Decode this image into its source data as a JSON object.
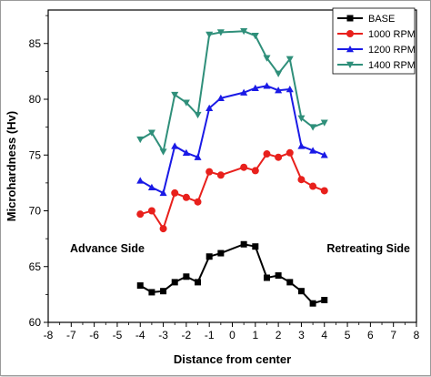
{
  "chart_data": {
    "type": "line",
    "xlabel": "Distance from center",
    "ylabel": "Microhardness (Hv)",
    "xlim": [
      -8,
      8
    ],
    "ylim": [
      60,
      88
    ],
    "x_ticks": [
      -8,
      -7,
      -6,
      -5,
      -4,
      -3,
      -2,
      -1,
      0,
      1,
      2,
      3,
      4,
      5,
      6,
      7,
      8
    ],
    "y_ticks": [
      60,
      65,
      70,
      75,
      80,
      85
    ],
    "grid": false,
    "legend_position": "top-right",
    "annotations": [
      "Advance Side",
      "Retreating Side"
    ],
    "x": [
      -4,
      -3.5,
      -3,
      -2.5,
      -2,
      -1.5,
      -1,
      -0.5,
      0.5,
      1,
      1.5,
      2,
      2.5,
      3,
      3.5,
      4
    ],
    "series": [
      {
        "name": "BASE",
        "color": "#000000",
        "marker": "square",
        "values": [
          63.3,
          62.7,
          62.8,
          63.6,
          64.1,
          63.6,
          65.9,
          66.2,
          67.0,
          66.8,
          64.0,
          64.2,
          63.6,
          62.8,
          61.7,
          62.0
        ]
      },
      {
        "name": "1000 RPM",
        "color": "#e8201c",
        "marker": "circle",
        "values": [
          69.7,
          70.0,
          68.4,
          71.6,
          71.2,
          70.8,
          73.5,
          73.2,
          73.9,
          73.6,
          75.1,
          74.8,
          75.2,
          72.8,
          72.2,
          71.8
        ]
      },
      {
        "name": "1200 RPM",
        "color": "#1a1ae6",
        "marker": "triangle-up",
        "values": [
          72.7,
          72.1,
          71.6,
          75.8,
          75.2,
          74.8,
          79.2,
          80.1,
          80.6,
          81.0,
          81.2,
          80.8,
          80.9,
          75.8,
          75.4,
          75.0
        ]
      },
      {
        "name": "1400 RPM",
        "color": "#2f8f7a",
        "marker": "triangle-down",
        "values": [
          76.4,
          77.0,
          75.3,
          80.4,
          79.7,
          78.6,
          85.8,
          86.0,
          86.1,
          85.7,
          83.7,
          82.3,
          83.6,
          78.3,
          77.5,
          77.9
        ]
      }
    ]
  }
}
